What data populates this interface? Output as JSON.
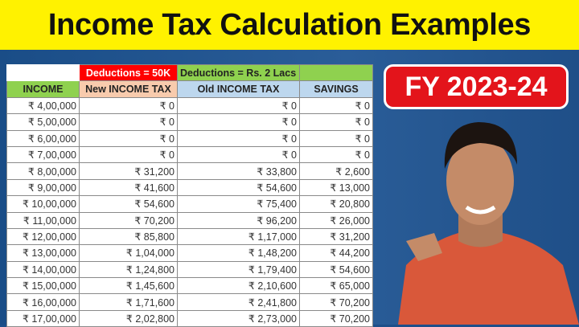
{
  "title": "Income Tax Calculation Examples",
  "badge": "FY 2023-24",
  "table": {
    "group_headers": [
      "",
      "Deductions = 50K",
      "Deductions = Rs. 2 Lacs",
      ""
    ],
    "headers": [
      "INCOME",
      "New INCOME TAX",
      "Old INCOME TAX",
      "SAVINGS"
    ],
    "rows": [
      [
        "₹ 4,00,000",
        "₹ 0",
        "₹ 0",
        "₹ 0"
      ],
      [
        "₹ 5,00,000",
        "₹ 0",
        "₹ 0",
        "₹ 0"
      ],
      [
        "₹ 6,00,000",
        "₹ 0",
        "₹ 0",
        "₹ 0"
      ],
      [
        "₹ 7,00,000",
        "₹ 0",
        "₹ 0",
        "₹ 0"
      ],
      [
        "₹ 8,00,000",
        "₹ 31,200",
        "₹ 33,800",
        "₹ 2,600"
      ],
      [
        "₹ 9,00,000",
        "₹ 41,600",
        "₹ 54,600",
        "₹ 13,000"
      ],
      [
        "₹ 10,00,000",
        "₹ 54,600",
        "₹ 75,400",
        "₹ 20,800"
      ],
      [
        "₹ 11,00,000",
        "₹ 70,200",
        "₹ 96,200",
        "₹ 26,000"
      ],
      [
        "₹ 12,00,000",
        "₹ 85,800",
        "₹ 1,17,000",
        "₹ 31,200"
      ],
      [
        "₹ 13,00,000",
        "₹ 1,04,000",
        "₹ 1,48,200",
        "₹ 44,200"
      ],
      [
        "₹ 14,00,000",
        "₹ 1,24,800",
        "₹ 1,79,400",
        "₹ 54,600"
      ],
      [
        "₹ 15,00,000",
        "₹ 1,45,600",
        "₹ 2,10,600",
        "₹ 65,000"
      ],
      [
        "₹ 16,00,000",
        "₹ 1,71,600",
        "₹ 2,41,800",
        "₹ 70,200"
      ],
      [
        "₹ 17,00,000",
        "₹ 2,02,800",
        "₹ 2,73,000",
        "₹ 70,200"
      ]
    ]
  },
  "colors": {
    "title_bg": "#fff200",
    "badge": "#e3141b",
    "red_header": "#ff0000",
    "green_header": "#8fd14f",
    "new_tax_header": "#f8cbad",
    "old_tax_header": "#bdd7ee"
  }
}
